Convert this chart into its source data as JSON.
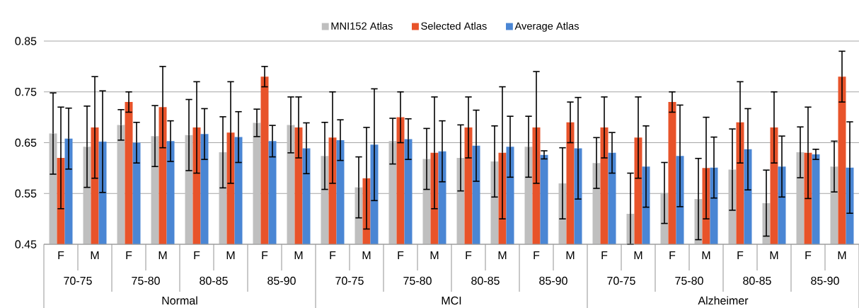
{
  "chart_data": {
    "type": "bar",
    "categories": [
      "F",
      "M",
      "F",
      "M",
      "F",
      "M",
      "F",
      "M",
      "F",
      "M",
      "F",
      "M",
      "F",
      "M",
      "F",
      "M",
      "F",
      "M",
      "F",
      "M",
      "F",
      "M",
      "F",
      "M"
    ],
    "series": [
      {
        "name": "MNI152 Atlas",
        "color": "#bfbfbf",
        "values": [
          0.668,
          0.642,
          0.685,
          0.663,
          0.665,
          0.631,
          0.689,
          0.685,
          0.624,
          0.562,
          0.653,
          0.618,
          0.62,
          0.613,
          0.642,
          0.57,
          0.61,
          0.51,
          0.551,
          0.539,
          0.597,
          0.531,
          0.631,
          0.603
        ],
        "errors": [
          0.08,
          0.08,
          0.03,
          0.06,
          0.07,
          0.07,
          0.027,
          0.055,
          0.066,
          0.06,
          0.045,
          0.06,
          0.065,
          0.07,
          0.06,
          0.07,
          0.05,
          [
            0.45,
            0.59
          ],
          0.06,
          0.08,
          0.08,
          0.065,
          0.05,
          0.05
        ]
      },
      {
        "name": "Selected Atlas",
        "color": "#e8532a",
        "values": [
          0.62,
          0.68,
          0.73,
          0.72,
          0.68,
          0.67,
          0.78,
          0.68,
          0.66,
          0.58,
          0.7,
          0.63,
          0.68,
          0.63,
          0.68,
          0.69,
          0.68,
          0.66,
          0.73,
          0.6,
          0.69,
          0.68,
          0.63,
          0.78
        ],
        "errors": [
          0.1,
          0.1,
          0.02,
          0.08,
          0.09,
          0.1,
          0.02,
          0.06,
          0.09,
          0.1,
          0.05,
          0.11,
          0.06,
          0.13,
          0.11,
          0.04,
          0.06,
          0.08,
          0.02,
          0.1,
          0.08,
          0.07,
          0.09,
          0.05
        ]
      },
      {
        "name": "Average Atlas",
        "color": "#4a86d4",
        "values": [
          0.658,
          0.652,
          0.65,
          0.653,
          0.667,
          0.661,
          0.653,
          0.639,
          0.655,
          0.646,
          0.657,
          0.633,
          0.644,
          0.642,
          0.626,
          0.639,
          0.63,
          0.603,
          0.624,
          0.601,
          0.637,
          0.603,
          0.627,
          0.601
        ],
        "errors": [
          0.06,
          0.1,
          0.04,
          0.04,
          0.05,
          0.05,
          0.031,
          0.05,
          0.04,
          0.11,
          0.04,
          0.06,
          0.07,
          0.06,
          0.008,
          0.1,
          0.04,
          0.08,
          0.1,
          0.06,
          0.08,
          0.06,
          0.01,
          0.09
        ]
      }
    ],
    "ylim": [
      0.45,
      0.85
    ],
    "yticks": [
      0.45,
      0.55,
      0.65,
      0.75,
      0.85
    ],
    "grid": "y",
    "legend": "top",
    "annotations": [
      "70-75",
      "75-80",
      "80-85",
      "85-90",
      "70-75",
      "75-80",
      "80-85",
      "85-90",
      "70-75",
      "75-80",
      "80-85",
      "85-90",
      "Normal",
      "MCI",
      "Alzheimer"
    ]
  }
}
